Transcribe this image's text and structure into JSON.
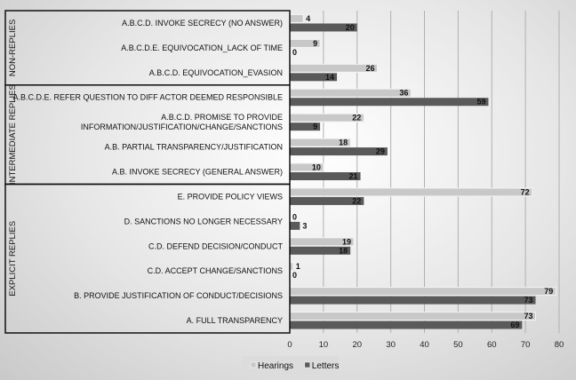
{
  "chart_data": {
    "type": "bar",
    "orientation": "horizontal",
    "title": "",
    "xlabel": "",
    "ylabel": "",
    "xlim": [
      0,
      80
    ],
    "xticks": [
      0,
      10,
      20,
      30,
      40,
      50,
      60,
      70,
      80
    ],
    "grid": true,
    "legend_position": "bottom",
    "categories": [
      [
        "A.B.C.D. INVOKE SECRECY (NO ANSWER)"
      ],
      [
        "A.B.C.D.E. EQUIVOCATION_LACK OF TIME"
      ],
      [
        "A.B.C.D. EQUIVOCATION_EVASION"
      ],
      [
        "A.B.C.D.E. REFER QUESTION TO DIFF ACTOR DEEMED RESPONSIBLE"
      ],
      [
        "A.B.C.D. PROMISE TO PROVIDE",
        "INFORMATION/JUSTIFICATION/CHANGE/SANCTIONS"
      ],
      [
        "A.B. PARTIAL TRANSPARENCY/JUSTIFICATION"
      ],
      [
        "A.B. INVOKE SECRECY (GENERAL ANSWER)"
      ],
      [
        "E. PROVIDE POLICY VIEWS"
      ],
      [
        "D. SANCTIONS NO LONGER NECESSARY"
      ],
      [
        "C.D. DEFEND DECISION/CONDUCT"
      ],
      [
        "C.D. ACCEPT CHANGE/SANCTIONS"
      ],
      [
        "B. PROVIDE JUSTIFICATION OF CONDUCT/DECISIONS"
      ],
      [
        "A. FULL TRANSPARENCY"
      ]
    ],
    "groups": [
      {
        "label": "NON-REPLIES",
        "count": 3
      },
      {
        "label": "INTERMEDIATE REPLIES",
        "count": 4
      },
      {
        "label": "EXPLICIT REPLIES",
        "count": 6
      }
    ],
    "series": [
      {
        "name": "Hearings",
        "color": "#c8c8c8",
        "values": [
          4,
          9,
          26,
          36,
          22,
          18,
          10,
          72,
          0,
          19,
          1,
          79,
          73
        ]
      },
      {
        "name": "Letters",
        "color": "#5a5a5a",
        "values": [
          20,
          0,
          14,
          59,
          9,
          29,
          21,
          22,
          3,
          18,
          0,
          73,
          69
        ]
      }
    ]
  }
}
